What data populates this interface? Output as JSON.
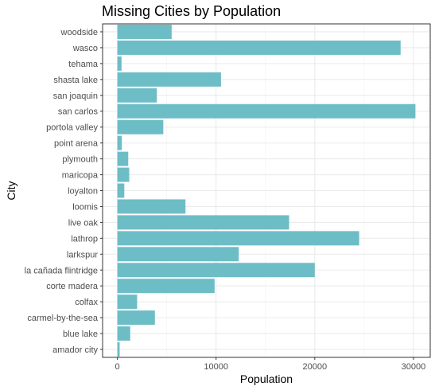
{
  "chart_data": {
    "type": "bar",
    "orientation": "horizontal",
    "title": "Missing Cities by Population",
    "xlabel": "Population",
    "ylabel": "City",
    "categories": [
      "woodside",
      "wasco",
      "tehama",
      "shasta lake",
      "san joaquin",
      "san carlos",
      "portola valley",
      "point arena",
      "plymouth",
      "maricopa",
      "loyalton",
      "loomis",
      "live oak",
      "lathrop",
      "larkspur",
      "la cañada flintridge",
      "corte madera",
      "colfax",
      "carmel-by-the-sea",
      "blue lake",
      "amador city"
    ],
    "values": [
      5500,
      28700,
      420,
      10500,
      4000,
      30200,
      4650,
      450,
      1100,
      1200,
      700,
      6900,
      17400,
      24500,
      12300,
      20000,
      9850,
      2000,
      3800,
      1300,
      230
    ],
    "xlim": [
      -1500,
      31700
    ],
    "xticks": [
      0,
      10000,
      20000,
      30000
    ],
    "xtick_labels": [
      "0",
      "10000",
      "20000",
      "30000"
    ],
    "grid": true,
    "bar_color": "#6dbdc6",
    "panel_border_color": "#333333"
  }
}
